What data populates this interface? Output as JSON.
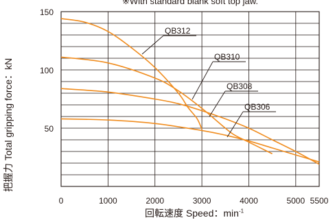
{
  "note": "※With standard blank soft top jaw.",
  "chart_data": {
    "type": "line",
    "ylabel": "把握力 Total gripping force：kN",
    "xlabel": "回転速度 Speed：min",
    "xlabel_sup": "-1",
    "xlim": [
      0,
      5500
    ],
    "ylim": [
      0,
      150
    ],
    "x_ticks": [
      0,
      1000,
      2000,
      3000,
      4000,
      5000,
      5500
    ],
    "y_ticks": [
      50,
      100,
      150
    ],
    "grid": true,
    "line_color": "#f08c1e",
    "series": [
      {
        "name": "QB312",
        "x": [
          0,
          500,
          1000,
          1500,
          2000,
          2500,
          2700,
          2900,
          3000
        ],
        "y": [
          144,
          141,
          133,
          119,
          102,
          80,
          68,
          58,
          49
        ]
      },
      {
        "name": "QB310",
        "x": [
          0,
          1000,
          2000,
          2500,
          3000,
          3500,
          3700,
          4000,
          4200,
          4500
        ],
        "y": [
          111,
          106,
          93,
          82,
          67,
          50,
          44,
          38,
          34,
          28
        ]
      },
      {
        "name": "QB308",
        "x": [
          0,
          1000,
          2000,
          2500,
          3000,
          3500,
          4000,
          4500,
          5000,
          5500
        ],
        "y": [
          84,
          81,
          75,
          71,
          65,
          58,
          50,
          40,
          30,
          19
        ]
      },
      {
        "name": "QB306",
        "x": [
          0,
          1000,
          2000,
          3000,
          3500,
          4000,
          4500,
          5000,
          5500
        ],
        "y": [
          58,
          57,
          54,
          48,
          44,
          39,
          33,
          27,
          21
        ]
      }
    ],
    "labels": [
      "QB312",
      "QB310",
      "QB308",
      "QB306"
    ]
  }
}
